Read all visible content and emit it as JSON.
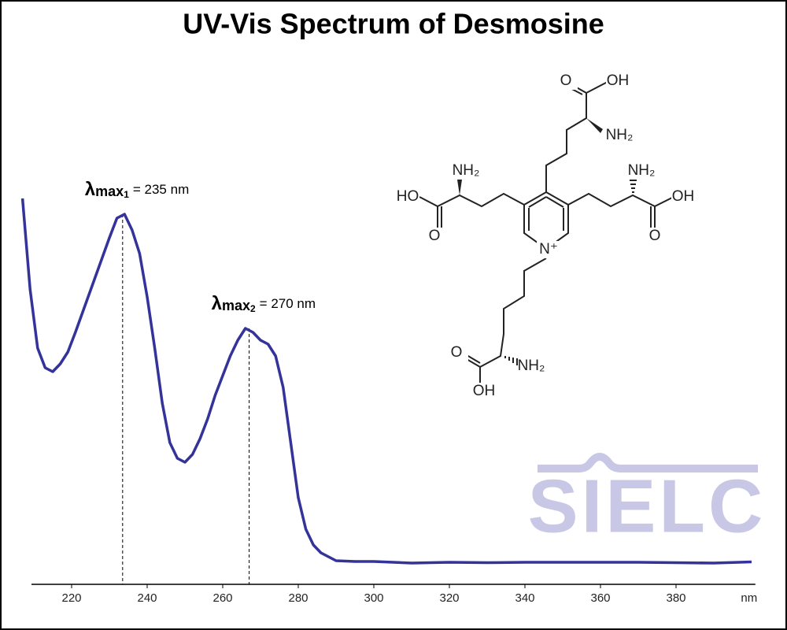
{
  "chart_data": {
    "type": "line",
    "title": "UV-Vis Spectrum of Desmosine",
    "x_label": "nm",
    "color": "#33339a",
    "xlim": [
      206,
      401
    ],
    "ylim": [
      0,
      1
    ],
    "xticks": [
      220,
      240,
      260,
      280,
      300,
      320,
      340,
      360,
      380
    ],
    "x": [
      207,
      209,
      211,
      213,
      215,
      217,
      219,
      221,
      224,
      227,
      230,
      232,
      234,
      236,
      238,
      240,
      242,
      244,
      246,
      248,
      250,
      252,
      254,
      256,
      258,
      260,
      262,
      264,
      266,
      268,
      270,
      272,
      274,
      276,
      278,
      280,
      282,
      284,
      286,
      288,
      290,
      295,
      300,
      310,
      320,
      330,
      340,
      350,
      360,
      370,
      380,
      390,
      400
    ],
    "values": [
      0.98,
      0.75,
      0.6,
      0.55,
      0.54,
      0.56,
      0.59,
      0.64,
      0.72,
      0.8,
      0.88,
      0.93,
      0.94,
      0.9,
      0.84,
      0.73,
      0.6,
      0.46,
      0.36,
      0.32,
      0.31,
      0.33,
      0.37,
      0.42,
      0.48,
      0.53,
      0.58,
      0.62,
      0.65,
      0.64,
      0.62,
      0.61,
      0.58,
      0.5,
      0.36,
      0.22,
      0.14,
      0.1,
      0.08,
      0.07,
      0.06,
      0.058,
      0.058,
      0.054,
      0.056,
      0.055,
      0.056,
      0.056,
      0.056,
      0.056,
      0.055,
      0.054,
      0.057
    ],
    "annotations": [
      {
        "symbol": "λ",
        "subscript": "max",
        "index": "1",
        "text": "= 235 nm",
        "x": 233.5,
        "y": 0.94
      },
      {
        "symbol": "λ",
        "subscript": "max",
        "index": "2",
        "text": "= 270 nm",
        "x": 267,
        "y": 0.65
      }
    ],
    "logo": "SIELC"
  },
  "structure": {
    "atoms": [
      "OH",
      "O",
      "NH₂",
      "NH₂",
      "HO",
      "O",
      "NH₂",
      "OH",
      "O",
      "N⁺",
      "O",
      "NH₂",
      "OH"
    ]
  }
}
